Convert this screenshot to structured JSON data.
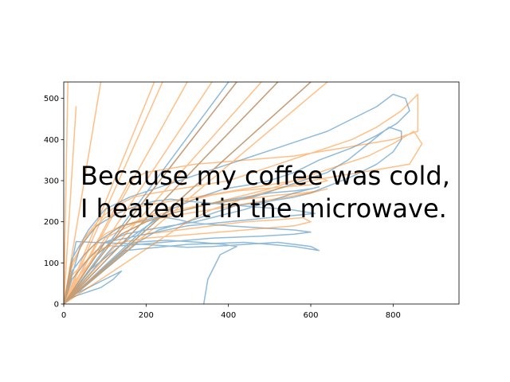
{
  "chart_data": {
    "type": "line",
    "title": "",
    "xlabel": "",
    "ylabel": "",
    "xlim": [
      0,
      960
    ],
    "ylim": [
      0,
      540
    ],
    "x_ticks": [
      "0",
      "200",
      "400",
      "600",
      "800"
    ],
    "y_ticks": [
      "0",
      "100",
      "200",
      "300",
      "400",
      "500"
    ],
    "grid": false,
    "legend": "none",
    "annotation": {
      "lines": [
        "Because my coffee was cold,",
        "I heated it in the microwave."
      ],
      "x": 40,
      "y": 255
    },
    "series": [
      {
        "color": "#1f77b4",
        "alpha": 0.5,
        "x": [
          0,
          400,
          0,
          420,
          0,
          520,
          0,
          600,
          0,
          180,
          230,
          300,
          360,
          420,
          500,
          560,
          600,
          650,
          700,
          760,
          800,
          820,
          820,
          790,
          740,
          690,
          640,
          580,
          520,
          460,
          400,
          340,
          300,
          260,
          220,
          180,
          140,
          110,
          80,
          50,
          20,
          0,
          80,
          140,
          200,
          260,
          320,
          380,
          440,
          500,
          560,
          600,
          620,
          560,
          500,
          440,
          380,
          320,
          260,
          200,
          150,
          100,
          60,
          20,
          0,
          100,
          200,
          300,
          400,
          500,
          610,
          550,
          480,
          420,
          360,
          300,
          260,
          220,
          180,
          130,
          80,
          40,
          0,
          120,
          240,
          360,
          480,
          560,
          600,
          560,
          480,
          400,
          340,
          300,
          280,
          250,
          230,
          0,
          60,
          160,
          260,
          330,
          390,
          450,
          500,
          560,
          620,
          700,
          760,
          810,
          840,
          830,
          800,
          760,
          700,
          640,
          580,
          520,
          460,
          400,
          340,
          280,
          220,
          160,
          100,
          60,
          20,
          0,
          150,
          300,
          440,
          560,
          620,
          600,
          520,
          440,
          360,
          300,
          240,
          180,
          120,
          70,
          30,
          0,
          20,
          60,
          100,
          140,
          120,
          90,
          60,
          30,
          10,
          0,
          170,
          250,
          330,
          390,
          420,
          380,
          350,
          340
        ],
        "y": [
          0,
          540,
          0,
          540,
          0,
          540,
          0,
          540,
          0,
          150,
          180,
          200,
          220,
          240,
          250,
          260,
          270,
          290,
          310,
          340,
          370,
          400,
          420,
          430,
          390,
          350,
          320,
          300,
          280,
          260,
          250,
          240,
          230,
          220,
          210,
          200,
          190,
          170,
          150,
          120,
          80,
          0,
          120,
          170,
          200,
          220,
          235,
          250,
          260,
          270,
          275,
          280,
          285,
          270,
          250,
          230,
          215,
          200,
          190,
          180,
          170,
          150,
          110,
          60,
          0,
          150,
          170,
          190,
          200,
          210,
          220,
          230,
          235,
          240,
          245,
          250,
          255,
          250,
          240,
          220,
          190,
          140,
          0,
          140,
          150,
          160,
          165,
          170,
          175,
          180,
          185,
          190,
          195,
          200,
          205,
          210,
          215,
          0,
          80,
          160,
          230,
          260,
          280,
          290,
          300,
          320,
          350,
          380,
          410,
          440,
          470,
          500,
          510,
          480,
          450,
          420,
          400,
          380,
          360,
          340,
          320,
          300,
          280,
          260,
          230,
          180,
          110,
          0,
          130,
          145,
          150,
          140,
          130,
          140,
          150,
          145,
          140,
          138,
          142,
          146,
          148,
          150,
          152,
          0,
          20,
          40,
          60,
          80,
          60,
          40,
          30,
          20,
          10,
          0,
          150,
          155,
          150,
          145,
          140,
          120,
          60,
          0
        ]
      },
      {
        "color": "#ff7f0e",
        "alpha": 0.5,
        "x": [
          0,
          10,
          0,
          30,
          0,
          90,
          0,
          220,
          0,
          240,
          0,
          300,
          0,
          360,
          0,
          420,
          0,
          480,
          0,
          520,
          0,
          600,
          0,
          640,
          0,
          160,
          200,
          260,
          320,
          380,
          440,
          500,
          560,
          620,
          680,
          740,
          800,
          860,
          860,
          820,
          760,
          700,
          640,
          580,
          520,
          460,
          400,
          340,
          280,
          220,
          170,
          130,
          90,
          50,
          20,
          0,
          100,
          180,
          240,
          300,
          360,
          420,
          480,
          540,
          600,
          640,
          620,
          560,
          500,
          440,
          380,
          320,
          260,
          200,
          150,
          100,
          60,
          20,
          0,
          120,
          200,
          280,
          360,
          440,
          520,
          580,
          620,
          640,
          600,
          540,
          480,
          420,
          360,
          300,
          240,
          190,
          140,
          100,
          60,
          30,
          0,
          200,
          280,
          360,
          440,
          520,
          580,
          600,
          560,
          500,
          440,
          380,
          320,
          260,
          200,
          140,
          80,
          20,
          0,
          60,
          120,
          180,
          240,
          300,
          360,
          420,
          480,
          540,
          600,
          660,
          720,
          780,
          840,
          870,
          850,
          800,
          740,
          680,
          620,
          560,
          500,
          440,
          380,
          320,
          260,
          200,
          140,
          80,
          30,
          0
        ],
        "y": [
          0,
          540,
          0,
          480,
          0,
          540,
          0,
          540,
          0,
          540,
          0,
          540,
          0,
          540,
          0,
          540,
          0,
          540,
          0,
          540,
          0,
          540,
          0,
          540,
          0,
          300,
          320,
          330,
          340,
          345,
          350,
          355,
          360,
          370,
          380,
          390,
          400,
          420,
          510,
          470,
          430,
          400,
          380,
          360,
          340,
          320,
          300,
          290,
          280,
          270,
          260,
          240,
          210,
          160,
          90,
          0,
          160,
          200,
          230,
          250,
          265,
          275,
          280,
          285,
          290,
          300,
          310,
          300,
          290,
          280,
          270,
          260,
          250,
          240,
          230,
          210,
          170,
          100,
          0,
          180,
          210,
          230,
          245,
          255,
          265,
          270,
          275,
          280,
          270,
          260,
          250,
          240,
          230,
          220,
          210,
          200,
          190,
          170,
          130,
          70,
          0,
          170,
          180,
          190,
          200,
          205,
          210,
          200,
          190,
          185,
          180,
          175,
          170,
          165,
          160,
          150,
          130,
          70,
          0,
          40,
          80,
          120,
          160,
          200,
          230,
          250,
          270,
          285,
          300,
          310,
          320,
          330,
          340,
          390,
          420,
          390,
          360,
          340,
          320,
          300,
          280,
          265,
          250,
          235,
          220,
          200,
          170,
          120,
          60,
          0
        ]
      }
    ]
  }
}
